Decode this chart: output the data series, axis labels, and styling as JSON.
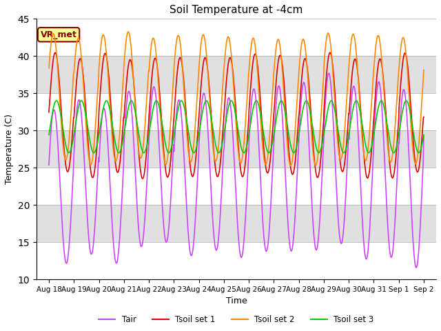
{
  "title": "Soil Temperature at -4cm",
  "xlabel": "Time",
  "ylabel": "Temperature (C)",
  "ylim": [
    10,
    45
  ],
  "n_points": 960,
  "fig_bg": "#ffffff",
  "plot_bg": "#e8e8e8",
  "colors": {
    "Tair": "#cc44ff",
    "Tsoil_set1": "#dd0000",
    "Tsoil_set2": "#ff8800",
    "Tsoil_set3": "#00cc00"
  },
  "legend_labels": [
    "Tair",
    "Tsoil set 1",
    "Tsoil set 2",
    "Tsoil set 3"
  ],
  "annotation_text": "VR_met",
  "annotation_color": "#880000",
  "annotation_bg": "#ffff99",
  "x_tick_labels": [
    "Aug 18",
    "Aug 19",
    "Aug 20",
    "Aug 21",
    "Aug 22",
    "Aug 23",
    "Aug 24",
    "Aug 25",
    "Aug 26",
    "Aug 27",
    "Aug 28",
    "Aug 29",
    "Aug 30",
    "Aug 31",
    "Sep 1",
    "Sep 2"
  ],
  "x_tick_positions": [
    0,
    1,
    2,
    3,
    4,
    5,
    6,
    7,
    8,
    9,
    10,
    11,
    12,
    13,
    14,
    15
  ],
  "y_ticks": [
    10,
    15,
    20,
    25,
    30,
    35,
    40,
    45
  ],
  "grid_color": "#ffffff",
  "linewidth": 1.2
}
